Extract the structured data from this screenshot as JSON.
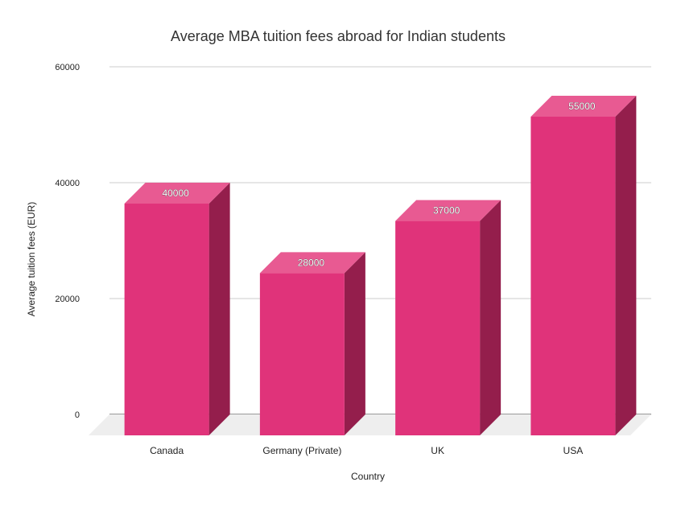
{
  "chart_data": {
    "type": "bar",
    "title": "Average MBA tuition fees abroad for Indian students",
    "xlabel": "Country",
    "ylabel": "Average tuition fees (EUR)",
    "categories": [
      "Canada",
      "Germany (Private)",
      "UK",
      "USA"
    ],
    "values": [
      40000,
      28000,
      37000,
      55000
    ],
    "ylim": [
      0,
      60000
    ],
    "yticks": [
      "0",
      "20000",
      "40000",
      "60000"
    ],
    "grid": true,
    "legend": "none",
    "style": "3d",
    "colors": {
      "bar_front": "#e0337a",
      "bar_top": "#e85a92",
      "bar_side": "#941e4c",
      "floor": "#eeeeee",
      "grid": "#cccccc"
    }
  }
}
